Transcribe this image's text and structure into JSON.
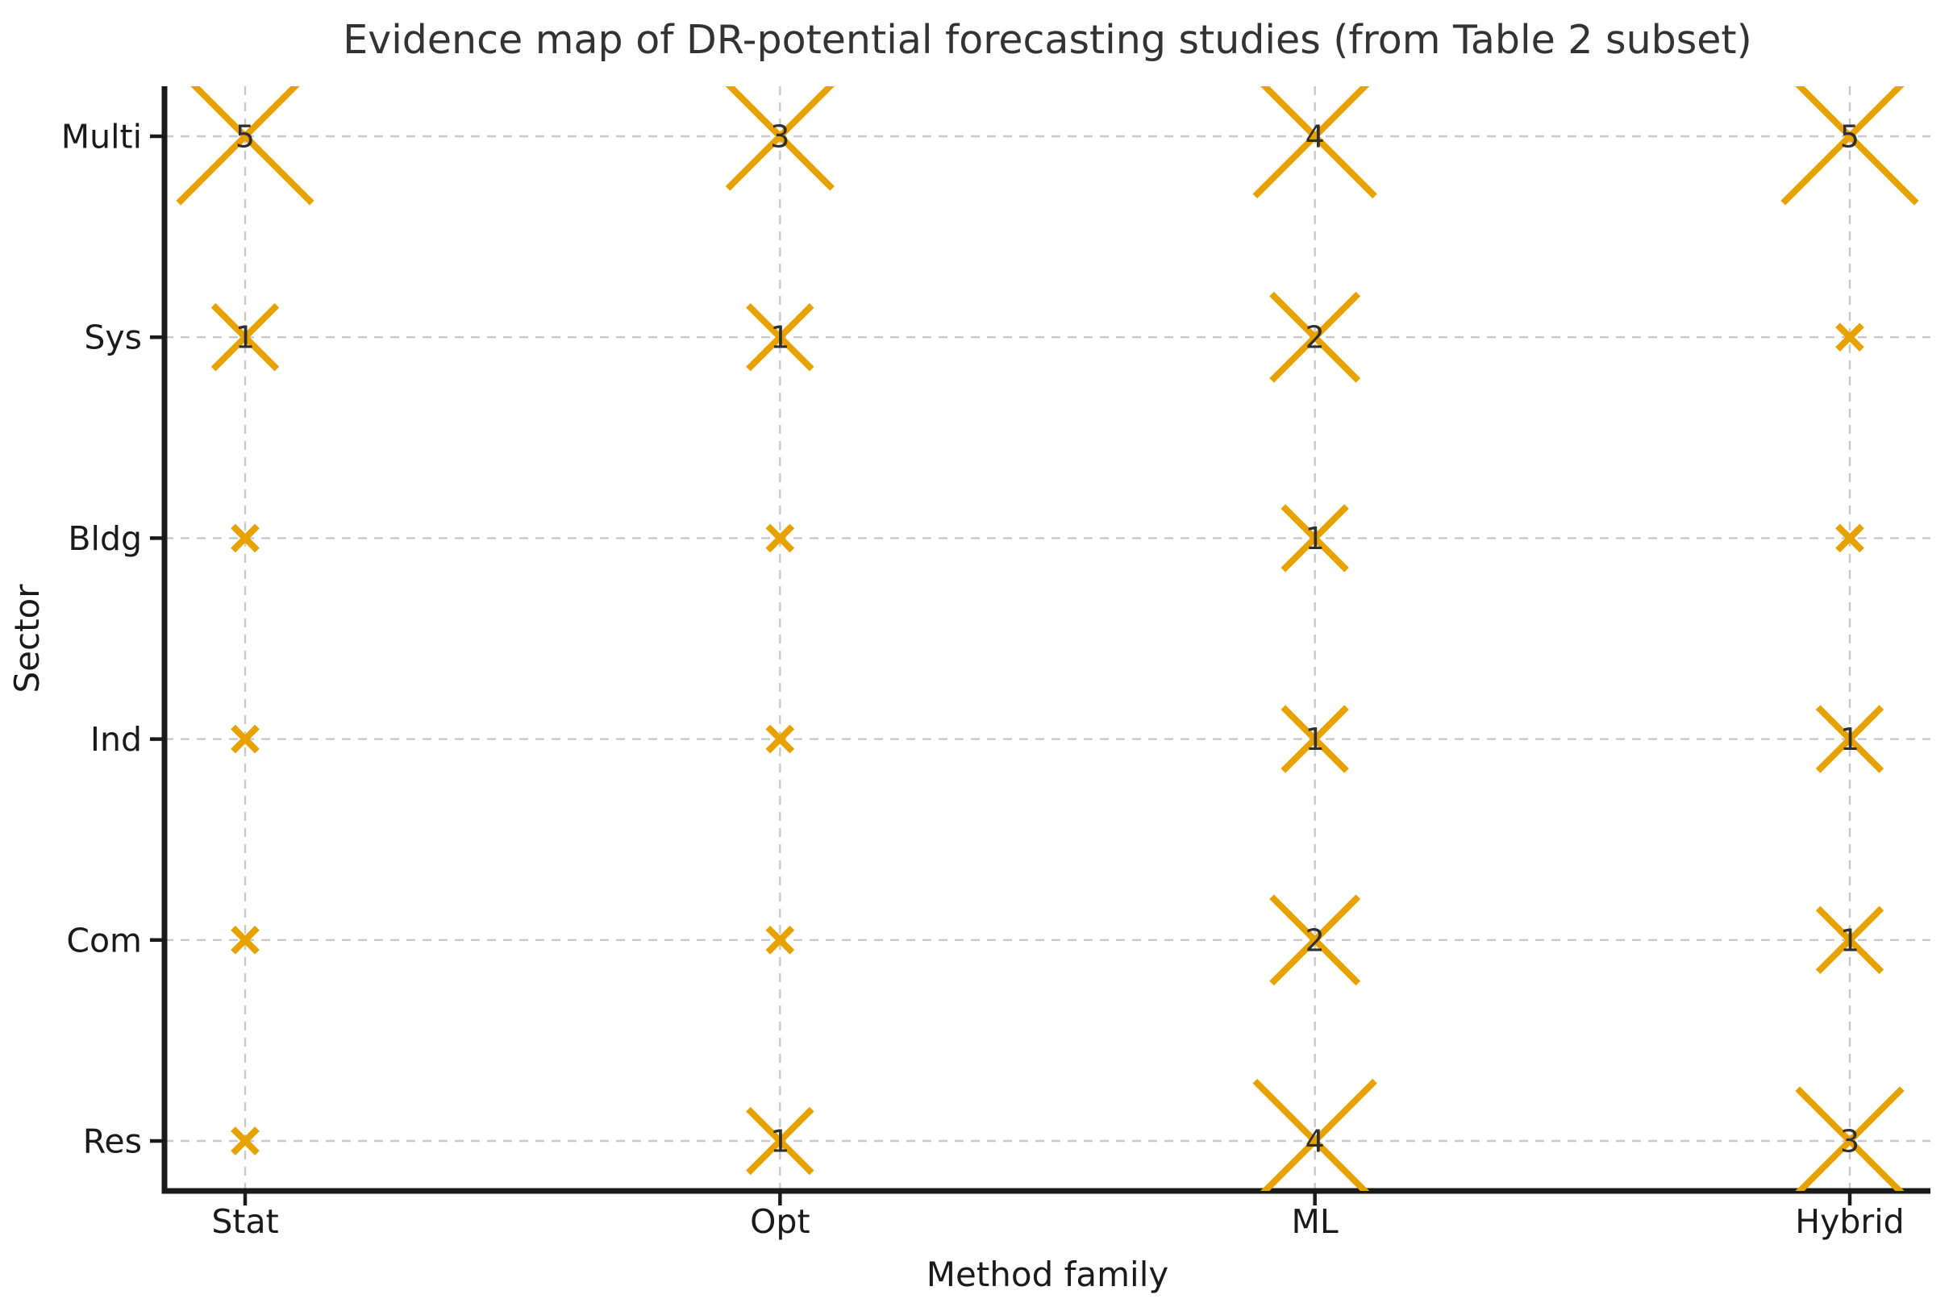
{
  "chart_data": {
    "type": "scatter",
    "title": "Evidence map of DR-potential forecasting studies (from Table 2 subset)",
    "xlabel": "Method family",
    "ylabel": "Sector",
    "x_categories": [
      "Stat",
      "Opt",
      "ML",
      "Hybrid"
    ],
    "y_categories_top_to_bottom": [
      "Multi",
      "Sys",
      "Bldg",
      "Ind",
      "Com",
      "Res"
    ],
    "marker": "x",
    "legend_position": "none",
    "grid": {
      "visible": true,
      "style": "dashed",
      "color": "#c9c9c9"
    },
    "size_encoding": "marker size scales with study count; zero-count cells show a small unlabeled x",
    "label_rule": "counts >= 1 are printed at the marker center",
    "counts": [
      {
        "sector": "Multi",
        "values": [
          5,
          3,
          4,
          5
        ]
      },
      {
        "sector": "Sys",
        "values": [
          1,
          1,
          2,
          0
        ]
      },
      {
        "sector": "Bldg",
        "values": [
          0,
          0,
          1,
          0
        ]
      },
      {
        "sector": "Ind",
        "values": [
          0,
          0,
          1,
          1
        ]
      },
      {
        "sector": "Com",
        "values": [
          0,
          0,
          2,
          1
        ]
      },
      {
        "sector": "Res",
        "values": [
          0,
          1,
          4,
          3
        ]
      }
    ]
  },
  "colors": {
    "background": "#ffffff",
    "marker": "#e8a200",
    "count_label": "#2f2f2f",
    "grid": "#c9c9c9",
    "axis": "#1a1a1a",
    "text": "#1a1a1a",
    "title_text": "#333333"
  }
}
